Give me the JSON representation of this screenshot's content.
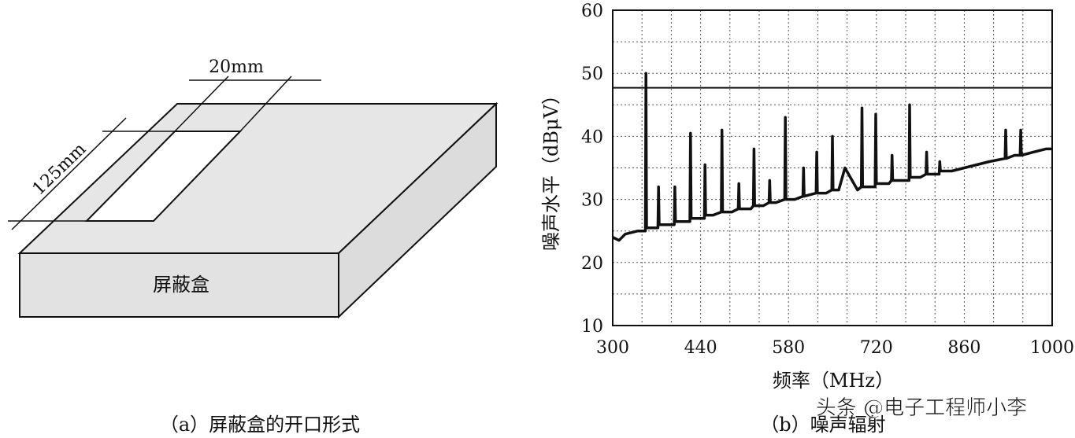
{
  "diagram": {
    "dimension_width": "20mm",
    "dimension_length": "125mm",
    "box_label": "屏蔽盒",
    "caption": "（a）屏蔽盒的开口形式"
  },
  "chart_data": {
    "type": "line",
    "x_label": "频率（MHz）",
    "y_label": "噪声水平（dBμV）",
    "caption": "（b）噪声辐射",
    "xlim": [
      300,
      1000
    ],
    "xticks": [
      300,
      440,
      580,
      720,
      860,
      1000
    ],
    "ylim": [
      10,
      60
    ],
    "yticks": [
      10,
      20,
      30,
      40,
      50,
      60
    ],
    "grid": true,
    "reference_line": 47.7,
    "series": [
      {
        "color": "#111111",
        "x": [
          300,
          310,
          320,
          340,
          352,
          353,
          354,
          360,
          372,
          373,
          374,
          380,
          398,
          399,
          400,
          420,
          423,
          424,
          425,
          440,
          446,
          447,
          448,
          460,
          473,
          474,
          475,
          490,
          500,
          501,
          502,
          520,
          524,
          525,
          526,
          540,
          549,
          550,
          551,
          560,
          574,
          575,
          576,
          590,
          603,
          604,
          605,
          624,
          625,
          626,
          640,
          649,
          650,
          651,
          660,
          670,
          690,
          696,
          697,
          698,
          710,
          718,
          719,
          720,
          740,
          744,
          745,
          746,
          760,
          772,
          773,
          774,
          790,
          799,
          800,
          801,
          820,
          821,
          822,
          840,
          860,
          880,
          900,
          925,
          926,
          927,
          940,
          949,
          950,
          951,
          970,
          990,
          1000
        ],
        "values": [
          24,
          23.5,
          24.5,
          25,
          25,
          50,
          25.5,
          25.5,
          25.5,
          32,
          26,
          26,
          26,
          32,
          26.5,
          26.5,
          26.5,
          40.5,
          27,
          27,
          27,
          35.5,
          27.5,
          27.5,
          28,
          41,
          28,
          28,
          28.5,
          32.5,
          28.5,
          28.5,
          29,
          38,
          29,
          29,
          29.5,
          33,
          29.5,
          29.5,
          30,
          43,
          30,
          30,
          30.5,
          35,
          30.5,
          31,
          37.5,
          31,
          31,
          31.5,
          40,
          31.5,
          31.5,
          35,
          31.5,
          32,
          44.5,
          32,
          32,
          32,
          43.5,
          32.5,
          32.5,
          33,
          37,
          33,
          33,
          33,
          45,
          33.5,
          33.5,
          34,
          37.5,
          34,
          34,
          36,
          34.5,
          34.5,
          35,
          35.5,
          36,
          36.5,
          41,
          36.5,
          37,
          37,
          41,
          37,
          37.5,
          38,
          38
        ]
      }
    ]
  },
  "watermark": "头条 @电子工程师小李"
}
